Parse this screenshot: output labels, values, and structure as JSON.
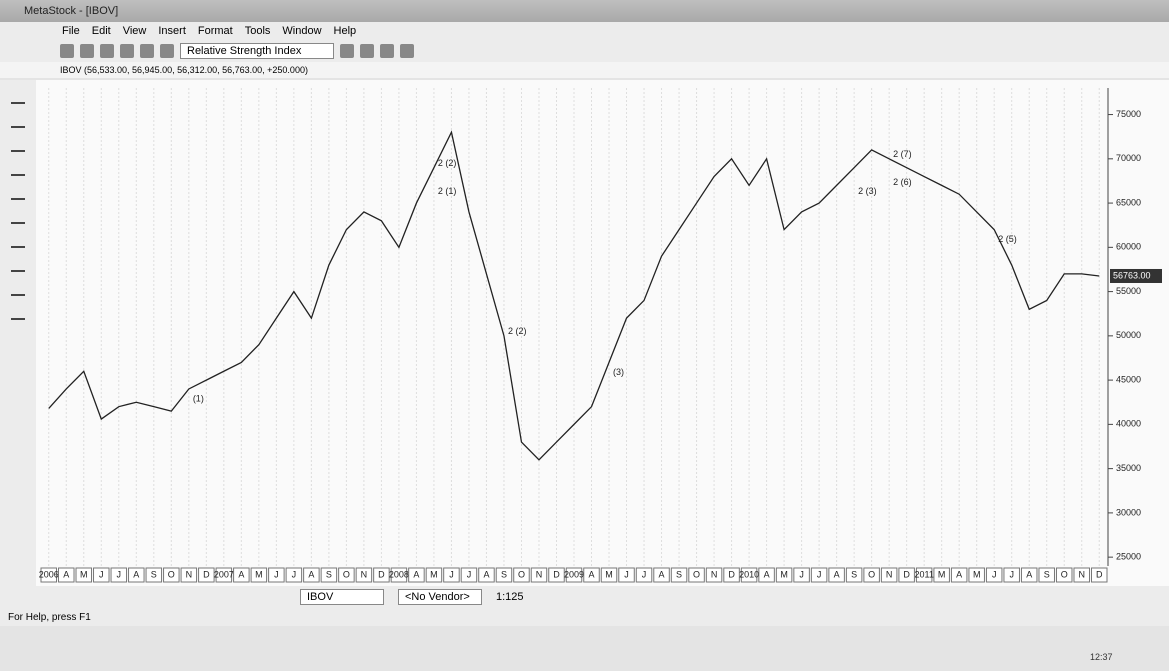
{
  "window": {
    "title": "MetaStock - [IBOV]",
    "menu": [
      "File",
      "Edit",
      "View",
      "Insert",
      "Format",
      "Tools",
      "Window",
      "Help"
    ],
    "indicator": "Relative Strength Index",
    "chart_header": "IBOV (56,533.00, 56,945.00, 56,312.00, 56,763.00, +250.000)",
    "security": "IBOV",
    "vendor": "<No Vendor>",
    "zoom": "1:125",
    "status": "For Help, press F1",
    "clock": "12:37"
  },
  "chart_data": {
    "type": "line",
    "color": "#222222",
    "categories": [
      "2006",
      "A",
      "M",
      "J",
      "J",
      "A",
      "S",
      "O",
      "N",
      "D",
      "2007",
      "A",
      "M",
      "J",
      "J",
      "A",
      "S",
      "O",
      "N",
      "D",
      "2008",
      "A",
      "M",
      "J",
      "J",
      "A",
      "S",
      "O",
      "N",
      "D",
      "2009",
      "A",
      "M",
      "J",
      "J",
      "A",
      "S",
      "O",
      "N",
      "D",
      "2010",
      "A",
      "M",
      "J",
      "J",
      "A",
      "S",
      "O",
      "N",
      "D",
      "2011",
      "M",
      "A",
      "M",
      "J",
      "J",
      "A",
      "S",
      "O",
      "N",
      "D"
    ],
    "values": [
      41800,
      44000,
      46000,
      40600,
      42000,
      42500,
      42000,
      41500,
      44000,
      45000,
      46000,
      47000,
      49000,
      52000,
      55000,
      52000,
      58000,
      62000,
      64000,
      63000,
      60000,
      65000,
      69000,
      73000,
      64000,
      57000,
      50000,
      38000,
      36000,
      38000,
      40000,
      42000,
      47000,
      52000,
      54000,
      59000,
      62000,
      65000,
      68000,
      70000,
      67000,
      70000,
      62000,
      64000,
      65000,
      67000,
      69000,
      71000,
      70000,
      69000,
      68000,
      67000,
      66000,
      64000,
      62000,
      58000,
      53000,
      54000,
      57000,
      57000,
      56763
    ],
    "ylim": [
      24000,
      78000
    ],
    "yticks": [
      25000,
      30000,
      35000,
      40000,
      45000,
      50000,
      55000,
      60000,
      65000,
      70000,
      75000
    ],
    "last_label": "56763.00",
    "annotations": [
      "(1)",
      "2 (1)",
      "2 (2)",
      "2 (2)",
      "(3)",
      "2 (3)",
      "2 (6)",
      "2 (7)",
      "2 (5)"
    ]
  }
}
